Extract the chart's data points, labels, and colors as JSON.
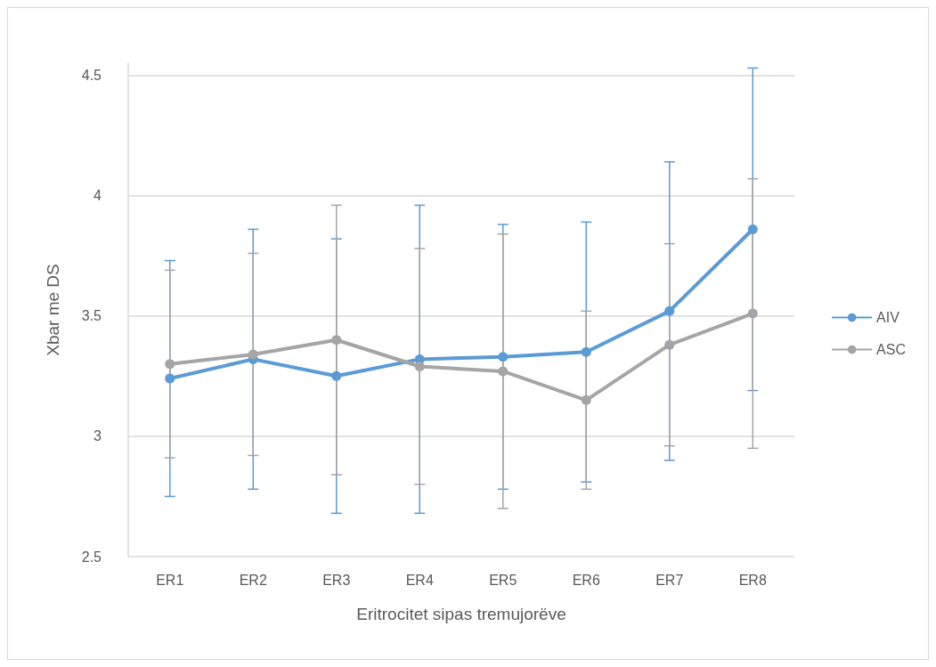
{
  "chart_data": {
    "type": "line",
    "xlabel": "Eritrocitet sipas tremujorëve",
    "ylabel": "Xbar me DS",
    "categories": [
      "ER1",
      "ER2",
      "ER3",
      "ER4",
      "ER5",
      "ER6",
      "ER7",
      "ER8"
    ],
    "series": [
      {
        "name": "AIV",
        "color": "#5b9bd5",
        "values": [
          3.24,
          3.32,
          3.25,
          3.32,
          3.33,
          3.35,
          3.52,
          3.86
        ],
        "errors": [
          [
            2.75,
            3.73
          ],
          [
            2.78,
            3.86
          ],
          [
            2.68,
            3.82
          ],
          [
            2.68,
            3.96
          ],
          [
            2.78,
            3.88
          ],
          [
            2.81,
            3.89
          ],
          [
            2.9,
            4.14
          ],
          [
            3.19,
            4.53
          ]
        ]
      },
      {
        "name": "ASC",
        "color": "#a5a5a5",
        "values": [
          3.3,
          3.34,
          3.4,
          3.29,
          3.27,
          3.15,
          3.38,
          3.51
        ],
        "errors": [
          [
            2.91,
            3.69
          ],
          [
            2.92,
            3.76
          ],
          [
            2.84,
            3.96
          ],
          [
            2.8,
            3.78
          ],
          [
            2.7,
            3.84
          ],
          [
            2.78,
            3.52
          ],
          [
            2.96,
            3.8
          ],
          [
            2.95,
            4.07
          ]
        ]
      }
    ],
    "ylim": [
      2.5,
      4.55
    ],
    "yticks": [
      2.5,
      3,
      3.5,
      4,
      4.5
    ],
    "grid": "y",
    "legend": "right",
    "marker": "circle",
    "line_style": "solid"
  }
}
